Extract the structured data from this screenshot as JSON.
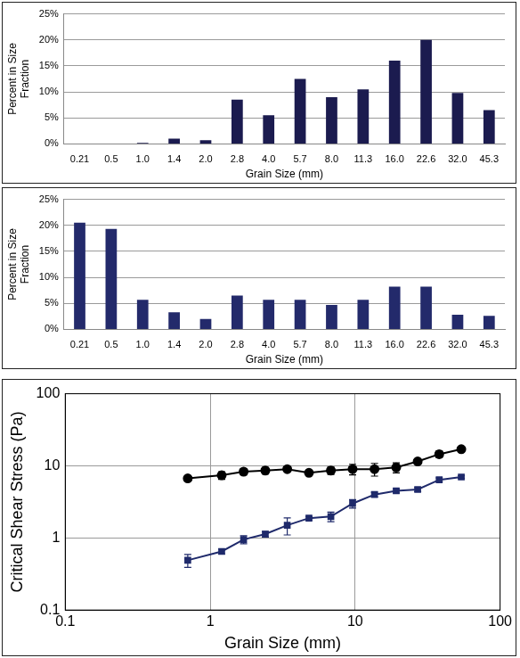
{
  "chart_data": [
    {
      "type": "bar",
      "categories": [
        "0.21",
        "0.5",
        "1.0",
        "1.4",
        "2.0",
        "2.8",
        "4.0",
        "5.7",
        "8.0",
        "11.3",
        "16.0",
        "22.6",
        "32.0",
        "45.3"
      ],
      "values": [
        0,
        0,
        0.2,
        1.0,
        0.7,
        8.5,
        5.5,
        12.5,
        9.0,
        10.5,
        16.0,
        20.0,
        9.8,
        6.5
      ],
      "color": "#1b1b4f",
      "x_label": "Grain Size (mm)",
      "y_label": [
        "Percent in Size",
        "Fraction"
      ],
      "ylim": [
        0,
        25
      ],
      "yticks": [
        {
          "value": 0,
          "label": "0%"
        },
        {
          "value": 5,
          "label": "5%"
        },
        {
          "value": 10,
          "label": "10%"
        },
        {
          "value": 15,
          "label": "15%"
        },
        {
          "value": 20,
          "label": "20%"
        },
        {
          "value": 25,
          "label": "25%"
        }
      ],
      "grid": true
    },
    {
      "type": "bar",
      "categories": [
        "0.21",
        "0.5",
        "1.0",
        "1.4",
        "2.0",
        "2.8",
        "4.0",
        "5.7",
        "8.0",
        "11.3",
        "16.0",
        "22.6",
        "32.0",
        "45.3"
      ],
      "values": [
        20.5,
        19.3,
        5.7,
        3.3,
        2.0,
        6.5,
        5.7,
        5.7,
        4.7,
        5.7,
        8.2,
        8.2,
        2.8,
        2.6
      ],
      "color": "#232a6b",
      "x_label": "Grain Size (mm)",
      "y_label": [
        "Percent in Size",
        "Fraction"
      ],
      "ylim": [
        0,
        25
      ],
      "yticks": [
        {
          "value": 0,
          "label": "0%"
        },
        {
          "value": 5,
          "label": "5%"
        },
        {
          "value": 10,
          "label": "10%"
        },
        {
          "value": 15,
          "label": "15%"
        },
        {
          "value": 20,
          "label": "20%"
        },
        {
          "value": 25,
          "label": "25%"
        }
      ],
      "grid": true
    },
    {
      "type": "line",
      "log": true,
      "grid": true,
      "x_label": "Grain Size (mm)",
      "y_label": "Critical Shear Stress (Pa)",
      "x": [
        0.7,
        1.2,
        1.7,
        2.4,
        3.4,
        4.8,
        6.8,
        9.6,
        13.6,
        19.2,
        27,
        38,
        54
      ],
      "xlim": [
        0.1,
        100
      ],
      "xticks": [
        0.1,
        1,
        10,
        100
      ],
      "ylim": [
        0.1,
        100
      ],
      "yticks": [
        0.1,
        1,
        10,
        100
      ],
      "series": [
        {
          "color": "#000000",
          "marker": "circle",
          "line_style": "solid",
          "values": [
            6.7,
            7.4,
            8.3,
            8.6,
            9.0,
            8.0,
            8.6,
            9.0,
            9.0,
            9.5,
            11.5,
            14.5,
            17.0
          ],
          "errors": [
            0.5,
            0.9,
            0.8,
            0.9,
            0.5,
            0.6,
            1.0,
            1.5,
            1.8,
            1.5,
            0.8,
            1.5,
            0.8
          ]
        },
        {
          "color": "#1f2a6b",
          "marker": "square",
          "line_style": "solid",
          "values": [
            0.49,
            0.65,
            0.95,
            1.13,
            1.5,
            1.88,
            1.98,
            3.0,
            4.0,
            4.5,
            4.7,
            6.4,
            7.0
          ],
          "errors": [
            0.1,
            0.05,
            0.12,
            0.1,
            0.4,
            0.1,
            0.3,
            0.4,
            0.3,
            0.3,
            0.3,
            0.4,
            0.3
          ]
        }
      ]
    }
  ]
}
